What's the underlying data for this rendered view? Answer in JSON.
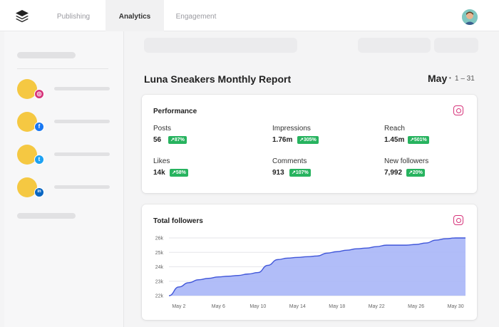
{
  "nav": {
    "tabs": [
      "Publishing",
      "Analytics",
      "Engagement"
    ],
    "active_tab": "Analytics"
  },
  "sidebar": {
    "accounts": [
      {
        "network": "instagram",
        "badge_color": "#d6337a",
        "badge_glyph": "◎"
      },
      {
        "network": "facebook",
        "badge_color": "#1877f2",
        "badge_glyph": "f"
      },
      {
        "network": "twitter",
        "badge_color": "#1da1f2",
        "badge_glyph": "t"
      },
      {
        "network": "linkedin",
        "badge_color": "#0a66c2",
        "badge_glyph": "in"
      }
    ]
  },
  "report": {
    "title": "Luna Sneakers Monthly Report",
    "month": "May",
    "range": "1 – 31"
  },
  "performance": {
    "title": "Performance",
    "network_icon": "instagram-icon",
    "metrics": [
      {
        "label": "Posts",
        "value": "56",
        "change": "↗87%"
      },
      {
        "label": "Impressions",
        "value": "1.76m",
        "change": "↗305%"
      },
      {
        "label": "Reach",
        "value": "1.45m",
        "change": "↗501%"
      },
      {
        "label": "Likes",
        "value": "14k",
        "change": "↗58%"
      },
      {
        "label": "Comments",
        "value": "913",
        "change": "↗107%"
      },
      {
        "label": "New followers",
        "value": "7,992",
        "change": "↗20%"
      }
    ]
  },
  "colors": {
    "accent_green": "#27b35f",
    "chart_fill": "#a9b6f7",
    "chart_line": "#3f55d9",
    "instagram": "#d6337a"
  },
  "chart_data": {
    "type": "area",
    "title": "Total followers",
    "x_tick_labels": [
      "May 2",
      "May 6",
      "May 10",
      "May 14",
      "May 18",
      "May 22",
      "May 26",
      "May 30"
    ],
    "y_tick_labels": [
      "22k",
      "23k",
      "24k",
      "25k",
      "26k"
    ],
    "ylim": [
      22000,
      26000
    ],
    "xlim": [
      1,
      31
    ],
    "series": [
      {
        "x": [
          1,
          2,
          3,
          4,
          5,
          6,
          7,
          8,
          9,
          10,
          11,
          12,
          13,
          14,
          15,
          16,
          17,
          18,
          19,
          20,
          21,
          22,
          23,
          24,
          25,
          26,
          27,
          28,
          29,
          30,
          31
        ],
        "values": [
          22000,
          22600,
          22900,
          23100,
          23200,
          23300,
          23350,
          23400,
          23500,
          23600,
          24100,
          24500,
          24600,
          24650,
          24700,
          24750,
          24950,
          25050,
          25150,
          25250,
          25300,
          25400,
          25500,
          25500,
          25500,
          25550,
          25650,
          25850,
          25950,
          26000,
          26000
        ]
      }
    ],
    "grid": true
  }
}
